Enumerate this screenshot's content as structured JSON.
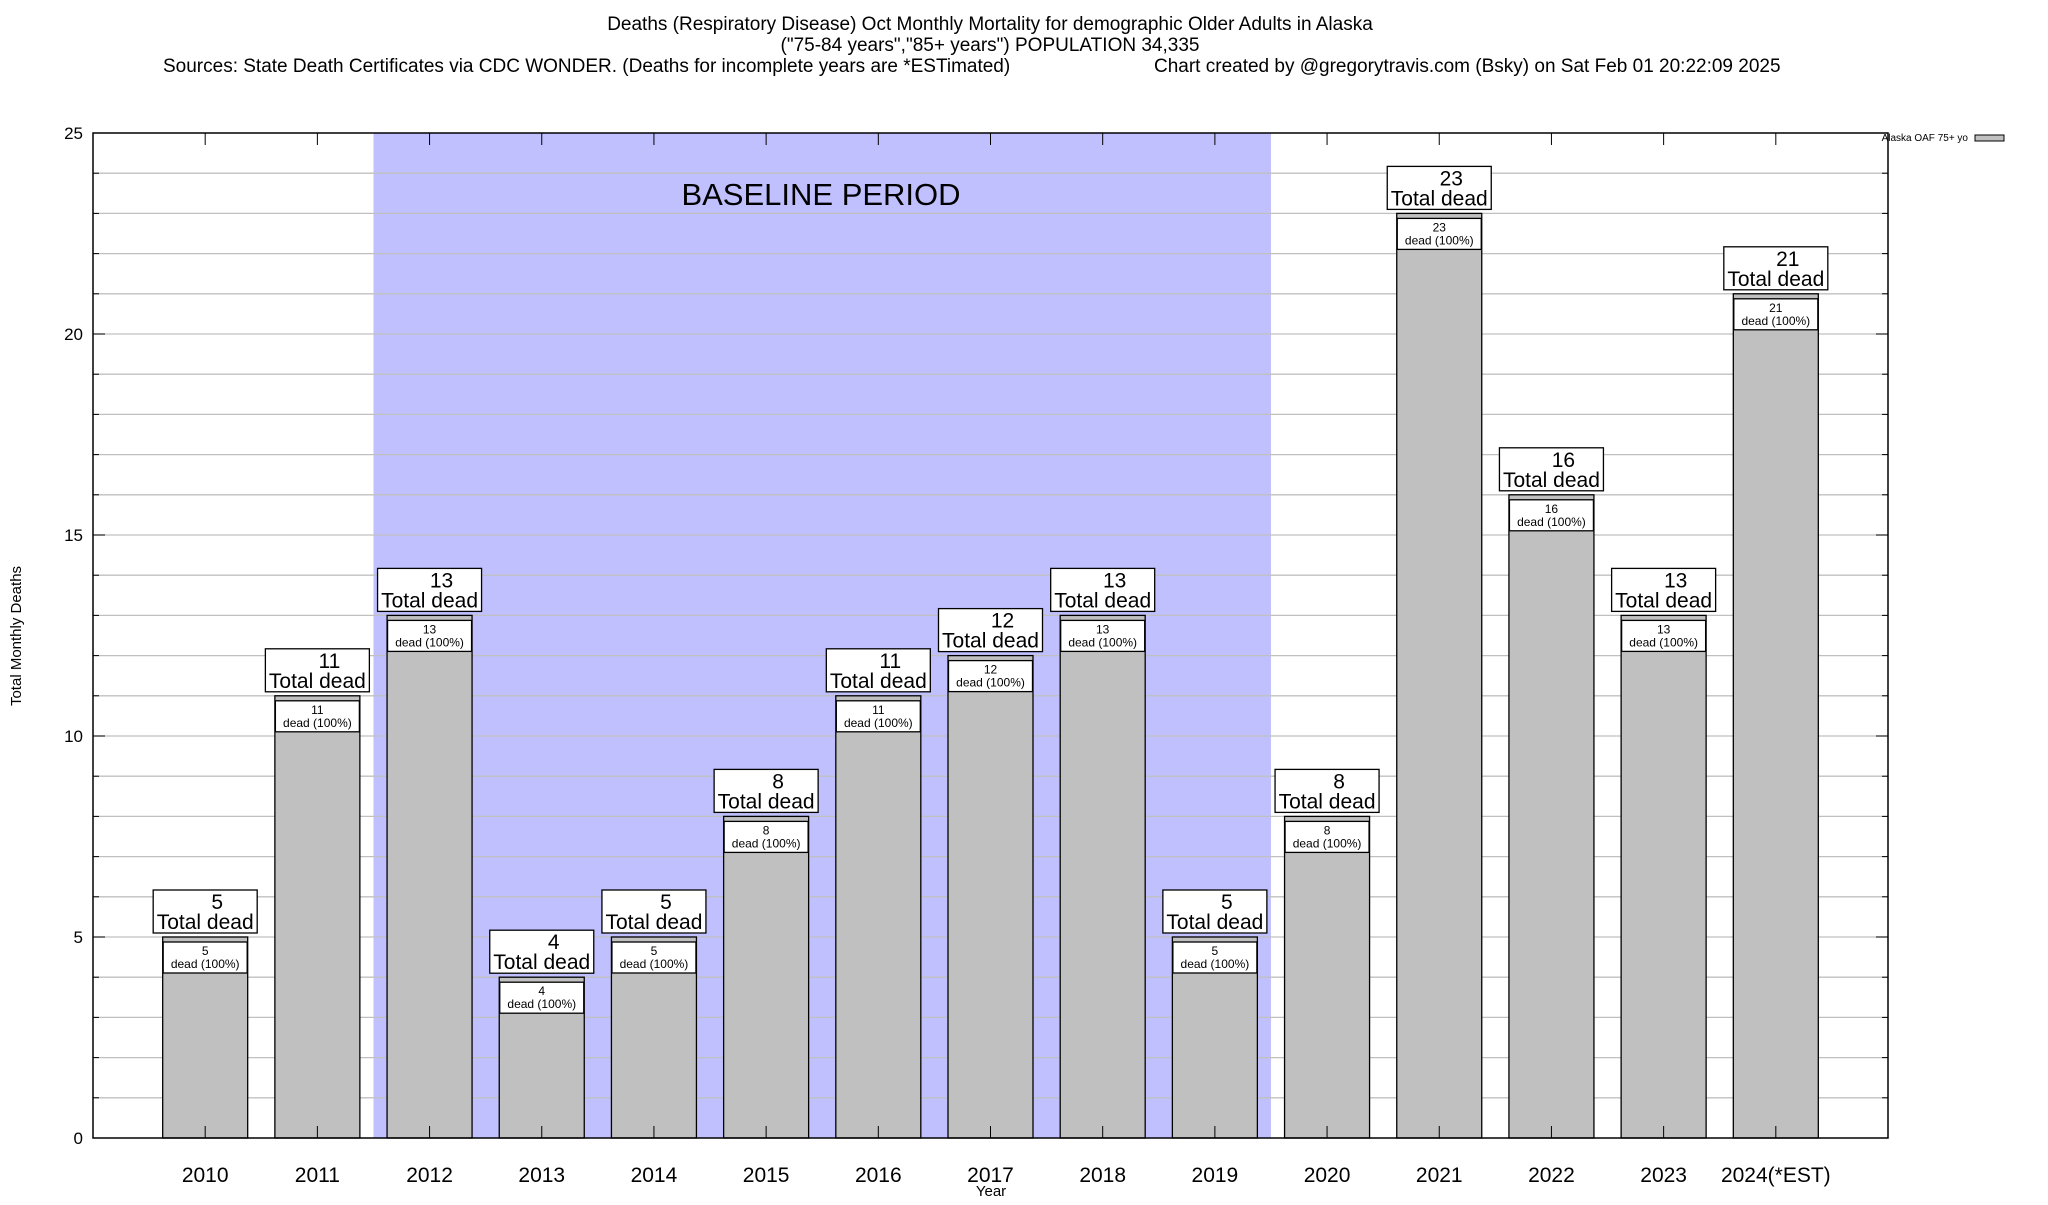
{
  "chart_data": {
    "type": "bar",
    "title_lines": [
      "Deaths (Respiratory Disease) Oct Monthly Mortality for demographic Older Adults in Alaska",
      "(\"75-84 years\",\"85+ years\") POPULATION 34,335"
    ],
    "source_note": "Sources: State Death Certificates via CDC WONDER. (Deaths for incomplete years are *ESTimated)",
    "credit_note": "Chart created by @gregorytravis.com (Bsky) on Sat Feb 01 20:22:09 2025",
    "xlabel": "Year",
    "ylabel": "Total Monthly Deaths",
    "ylim": [
      0,
      25
    ],
    "yticks": [
      0,
      5,
      10,
      15,
      20,
      25
    ],
    "grid": true,
    "legend": {
      "placement": "top-right, outside",
      "entries": [
        "Alaska OAF 75+ yo"
      ]
    },
    "categories": [
      "2010",
      "2011",
      "2012",
      "2013",
      "2014",
      "2015",
      "2016",
      "2017",
      "2018",
      "2019",
      "2020",
      "2021",
      "2022",
      "2023",
      "2024(*EST)"
    ],
    "series": [
      {
        "name": "Alaska OAF 75+ yo",
        "values": [
          5,
          11,
          13,
          4,
          5,
          8,
          11,
          12,
          13,
          5,
          8,
          23,
          16,
          13,
          21
        ]
      }
    ],
    "total_label_suffix": "Total dead",
    "inner_label_suffix": "dead (100%)",
    "baseline": {
      "label": "BASELINE PERIOD",
      "from": "2012",
      "to": "2019"
    },
    "colors": {
      "bar": "#c0c0c0",
      "baseline_shade": "#c0c0ff",
      "grid": "#c0c0c0"
    }
  }
}
